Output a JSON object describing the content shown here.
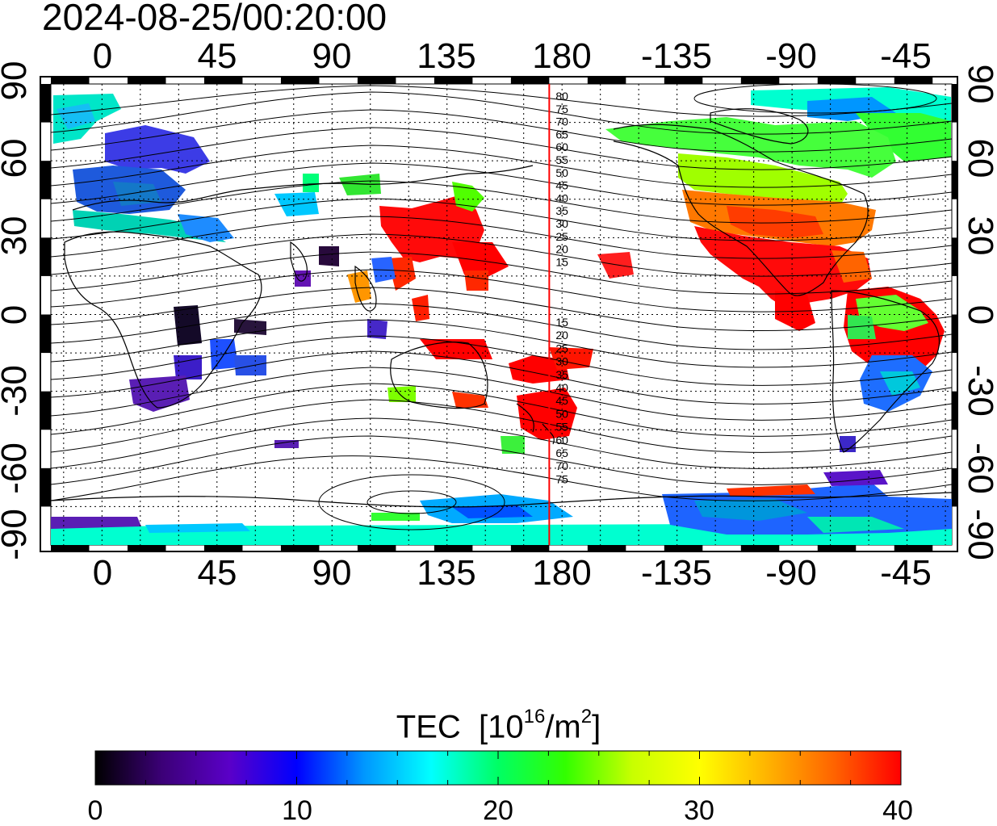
{
  "title": "2024-08-25/00:20:00",
  "map": {
    "lon_ticks": [
      "0",
      "45",
      "90",
      "135",
      "180",
      "-135",
      "-90",
      "-45"
    ],
    "lat_ticks": [
      "90",
      "60",
      "30",
      "0",
      "-30",
      "-60",
      "-90"
    ],
    "meridian_lon": 175,
    "contour_labels_north": [
      "80",
      "75",
      "70",
      "65",
      "60",
      "55",
      "50",
      "45",
      "40",
      "35",
      "30",
      "25",
      "20",
      "15"
    ],
    "contour_labels_south": [
      "15",
      "20",
      "25",
      "30",
      "35",
      "40",
      "45",
      "50",
      "55",
      "60",
      "65",
      "70",
      "75"
    ],
    "meridian_color": "#ff0000"
  },
  "colorbar": {
    "label": "TEC",
    "unit_base": "[10",
    "unit_exp": "16",
    "unit_mid": "/m",
    "unit_exp2": "2",
    "unit_end": "]",
    "ticks": [
      "0",
      "10",
      "20",
      "30",
      "40"
    ],
    "min": 0,
    "max": 40,
    "colors": [
      "#000000",
      "#3c0078",
      "#5a00c8",
      "#0000ff",
      "#0096ff",
      "#00ffff",
      "#00ff64",
      "#32ff00",
      "#c8ff00",
      "#ffff00",
      "#ffb400",
      "#ff6400",
      "#ff0000"
    ]
  }
}
